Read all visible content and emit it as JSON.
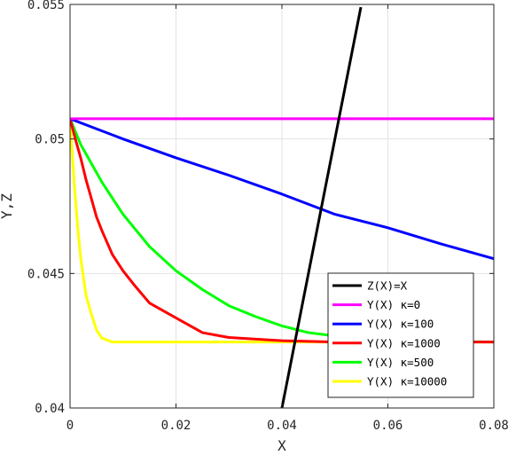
{
  "chart_data": {
    "type": "line",
    "title": "",
    "xlabel": "X",
    "ylabel": "Y,Z",
    "xlim": [
      0,
      0.08
    ],
    "ylim": [
      0.04,
      0.055
    ],
    "xticks": [
      0,
      0.02,
      0.04,
      0.06,
      0.08
    ],
    "xtick_labels": [
      "0",
      "0.02",
      "0.04",
      "0.06",
      "0.08"
    ],
    "yticks": [
      0.04,
      0.045,
      0.05,
      0.055
    ],
    "ytick_labels": [
      "0.04",
      "0.045",
      "0.05",
      "0.055"
    ],
    "grid": true,
    "legend_position": "bottom-right",
    "series": [
      {
        "name": "Z(X)=X",
        "color": "#000000",
        "x": [
          0.03963,
          0.0549
        ],
        "y": [
          0.03963,
          0.0549
        ]
      },
      {
        "name": "Y(X) κ=0",
        "color": "#ff00ff",
        "x": [
          0,
          0.08
        ],
        "y": [
          0.05075,
          0.05075
        ]
      },
      {
        "name": "Y(X) κ=100",
        "color": "#0000ff",
        "x": [
          0,
          0.01,
          0.02,
          0.03,
          0.04,
          0.05,
          0.06,
          0.07,
          0.08
        ],
        "y": [
          0.05075,
          0.05,
          0.0493,
          0.04865,
          0.04795,
          0.0472,
          0.0467,
          0.0461,
          0.04555
        ]
      },
      {
        "name": "Y(X) κ=1000",
        "color": "#ff0000",
        "x": [
          0,
          0.001,
          0.002,
          0.003,
          0.004,
          0.005,
          0.006,
          0.008,
          0.01,
          0.012,
          0.015,
          0.02,
          0.025,
          0.03,
          0.04,
          0.05,
          0.06,
          0.08
        ],
        "y": [
          0.05075,
          0.05,
          0.0493,
          0.0485,
          0.0478,
          0.0471,
          0.0466,
          0.0457,
          0.0451,
          0.0446,
          0.0439,
          0.04335,
          0.0428,
          0.04262,
          0.0425,
          0.04245,
          0.04245,
          0.04245
        ]
      },
      {
        "name": "Y(X) κ=500",
        "color": "#00ff00",
        "x": [
          0,
          0.002,
          0.004,
          0.006,
          0.008,
          0.01,
          0.015,
          0.02,
          0.025,
          0.03,
          0.035,
          0.04,
          0.045,
          0.05,
          0.06,
          0.08
        ],
        "y": [
          0.05075,
          0.0498,
          0.0491,
          0.0484,
          0.0478,
          0.0472,
          0.046,
          0.0451,
          0.0444,
          0.0438,
          0.0434,
          0.04305,
          0.0428,
          0.04268,
          0.0425,
          0.04245
        ]
      },
      {
        "name": "Y(X) κ=10000",
        "color": "#ffff00",
        "x": [
          0,
          0.0003,
          0.0006,
          0.001,
          0.0015,
          0.002,
          0.003,
          0.004,
          0.005,
          0.006,
          0.008,
          0.08
        ],
        "y": [
          0.05075,
          0.0498,
          0.0489,
          0.0478,
          0.0466,
          0.0456,
          0.0442,
          0.0435,
          0.0429,
          0.0426,
          0.04245,
          0.04245
        ]
      }
    ]
  }
}
